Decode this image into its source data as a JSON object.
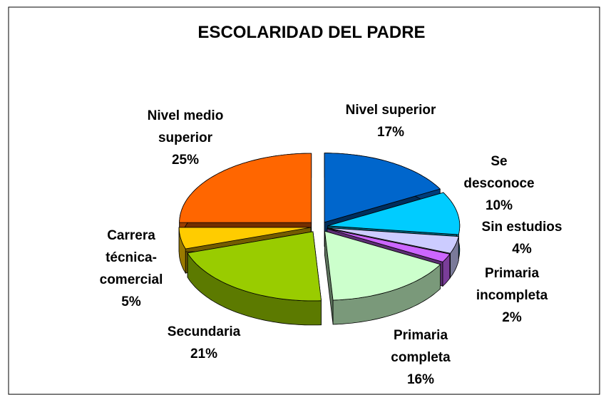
{
  "chart_data": {
    "type": "pie",
    "title": "ESCOLARIDAD DEL PADRE",
    "categories": [
      "Nivel superior",
      "Se desconoce",
      "Sin estudios",
      "Primaria incompleta",
      "Primaria completa",
      "Secundaria",
      "Carrera técnica-comercial",
      "Nivel medio superior"
    ],
    "values": [
      17,
      10,
      4,
      2,
      16,
      21,
      5,
      25
    ],
    "value_labels": [
      "17%",
      "10%",
      "4%",
      "2%",
      "16%",
      "21%",
      "5%",
      "25%"
    ],
    "colors": [
      "#0066cc",
      "#00ccff",
      "#ccccff",
      "#cc66ff",
      "#ccffcc",
      "#99cc00",
      "#ffcc00",
      "#ff6600"
    ]
  }
}
